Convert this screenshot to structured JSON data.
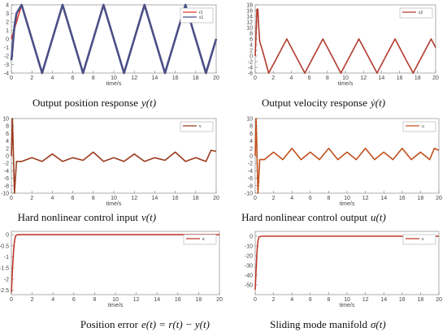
{
  "chart_data": [
    {
      "type": "line",
      "caption": "Output position response",
      "caption_symbol": "y(t)",
      "xlabel": "time/s",
      "xlim": [
        0,
        20
      ],
      "ylim": [
        -4,
        4
      ],
      "xticks": [
        0,
        2,
        4,
        6,
        8,
        10,
        12,
        14,
        16,
        18,
        20
      ],
      "yticks": [
        4,
        3,
        2,
        1,
        0,
        -1,
        -2,
        -3,
        -4
      ],
      "legend": [
        "r1",
        "x1"
      ],
      "series": [
        {
          "name": "r1",
          "color": "#e0342a",
          "x": [
            0,
            1,
            2,
            3,
            4,
            5,
            6,
            7,
            8,
            9,
            10,
            11,
            12,
            13,
            14,
            15,
            16,
            17,
            18,
            19,
            20
          ],
          "y": [
            0,
            4,
            0,
            -4,
            0,
            4,
            0,
            -4,
            0,
            4,
            0,
            -4,
            0,
            4,
            0,
            -4,
            0,
            4,
            0,
            -4,
            0
          ]
        },
        {
          "name": "x1",
          "color": "#4b4f86",
          "x": [
            0,
            0.1,
            0.2,
            0.3,
            0.5,
            1,
            2,
            3,
            4,
            5,
            6,
            7,
            8,
            9,
            10,
            11,
            12,
            13,
            14,
            15,
            16,
            17,
            18,
            19,
            20
          ],
          "y": [
            -2.5,
            -1.2,
            0.2,
            1.5,
            3.0,
            4,
            0,
            -4,
            0,
            4,
            0,
            -4,
            0,
            4,
            0,
            -4,
            0,
            4,
            0,
            -4,
            0,
            4,
            0,
            -4,
            0
          ]
        }
      ]
    },
    {
      "type": "line",
      "caption": "Output velocity response",
      "caption_symbol": "ẏ(t)",
      "xlabel": "time/s",
      "xlim": [
        0,
        20
      ],
      "ylim": [
        -6,
        18
      ],
      "xticks": [
        0,
        2,
        4,
        6,
        8,
        10,
        12,
        14,
        16,
        18,
        20
      ],
      "yticks": [
        -6,
        -4,
        -2,
        0,
        2,
        4,
        6,
        8,
        10,
        12,
        14,
        16,
        18
      ],
      "legend": [
        "x2"
      ],
      "series": [
        {
          "name": "x2",
          "color": "#b23a2e",
          "x": [
            0,
            0.1,
            0.2,
            0.3,
            0.4,
            0.5,
            0.8,
            1.5,
            2.5,
            3.5,
            4.5,
            5.5,
            6.5,
            7.5,
            8.5,
            9.5,
            10.5,
            11.5,
            12.5,
            13.5,
            14.5,
            15.5,
            16.5,
            17.5,
            18.5,
            19.5,
            20
          ],
          "y": [
            0,
            8,
            16.5,
            16.5,
            10,
            5,
            2,
            -6,
            0,
            6,
            0,
            -6,
            0,
            6,
            0,
            -6,
            0,
            6,
            0,
            -6,
            0,
            6,
            0,
            -6,
            0,
            6,
            3
          ]
        }
      ]
    },
    {
      "type": "line",
      "caption": "Hard nonlinear control input",
      "caption_symbol": "v(t)",
      "xlabel": "time/s",
      "xlim": [
        0,
        20
      ],
      "ylim": [
        -10,
        10
      ],
      "xticks": [
        0,
        2,
        4,
        6,
        8,
        10,
        12,
        14,
        16,
        18,
        20
      ],
      "yticks": [
        10,
        8,
        6,
        4,
        2,
        0,
        -2,
        -4,
        -6,
        -8,
        -10
      ],
      "legend": [
        "v"
      ],
      "series": [
        {
          "name": "v",
          "color": "#9b3a1c",
          "x": [
            0,
            0.1,
            0.3,
            0.5,
            1,
            2,
            3,
            4,
            5,
            6,
            7,
            8,
            9,
            10,
            11,
            12,
            13,
            14,
            15,
            16,
            17,
            18,
            19,
            19.5,
            20
          ],
          "y": [
            0,
            10,
            -10,
            -1.5,
            -1.5,
            -0.5,
            -1.5,
            0.5,
            -1.5,
            -0.5,
            -1.2,
            1,
            -1.5,
            -0.5,
            -1.5,
            0.5,
            -1.5,
            -0.5,
            -1.2,
            1,
            -1.5,
            -0.5,
            -1.5,
            1.5,
            1.2
          ]
        }
      ]
    },
    {
      "type": "line",
      "caption": "Hard nonlinear control output",
      "caption_symbol": "u(t)",
      "xlabel": "time/s",
      "xlim": [
        0,
        20
      ],
      "ylim": [
        -10,
        10
      ],
      "xticks": [
        0,
        2,
        4,
        6,
        8,
        10,
        12,
        14,
        16,
        18,
        20
      ],
      "yticks": [
        10,
        8,
        6,
        4,
        2,
        0,
        -2,
        -4,
        -6,
        -8,
        -10
      ],
      "legend": [
        "u"
      ],
      "series": [
        {
          "name": "u",
          "color": "#c0501c",
          "x": [
            0,
            0.1,
            0.3,
            0.5,
            1,
            2,
            3,
            4,
            5,
            6,
            7,
            8,
            9,
            10,
            11,
            12,
            13,
            14,
            15,
            16,
            17,
            18,
            19,
            19.5,
            20
          ],
          "y": [
            0,
            10,
            -10,
            -1,
            -1,
            1,
            -1,
            2,
            -1,
            1,
            -1,
            2,
            -1,
            1,
            -1,
            2,
            -1,
            1,
            -1,
            2,
            -1,
            1,
            -1,
            2,
            1.5
          ]
        }
      ]
    },
    {
      "type": "line",
      "caption": "Position error",
      "caption_symbol": "e(t) = r(t) − y(t)",
      "xlabel": "time/s",
      "xlim": [
        0,
        20
      ],
      "ylim": [
        -2.7,
        0.15
      ],
      "xticks": [
        0,
        2,
        4,
        6,
        8,
        10,
        12,
        14,
        16,
        18,
        20
      ],
      "yticks": [
        0,
        -0.5,
        -1,
        -1.5,
        -2,
        -2.5
      ],
      "legend": [
        "e"
      ],
      "series": [
        {
          "name": "e",
          "color": "#c0392b",
          "x": [
            0,
            0.1,
            0.2,
            0.3,
            0.4,
            0.6,
            1,
            5,
            10,
            15,
            20
          ],
          "y": [
            -2.6,
            -1.6,
            -0.8,
            -0.3,
            -0.05,
            0,
            0,
            0,
            0,
            0,
            0
          ]
        }
      ]
    },
    {
      "type": "line",
      "caption": "Sliding mode manifold",
      "caption_symbol": "σ(t)",
      "xlabel": "time/s",
      "xlim": [
        0,
        20
      ],
      "ylim": [
        -60,
        5
      ],
      "xticks": [
        0,
        2,
        4,
        6,
        8,
        10,
        12,
        14,
        16,
        18,
        20
      ],
      "yticks": [
        0,
        -10,
        -20,
        -30,
        -40,
        -50
      ],
      "legend": [
        "s"
      ],
      "series": [
        {
          "name": "s",
          "color": "#c0392b",
          "x": [
            0,
            0.1,
            0.2,
            0.3,
            0.4,
            0.6,
            1,
            5,
            10,
            15,
            20
          ],
          "y": [
            -55,
            -35,
            -15,
            -5,
            -1,
            0,
            0,
            0,
            0,
            0,
            0
          ]
        }
      ]
    }
  ]
}
